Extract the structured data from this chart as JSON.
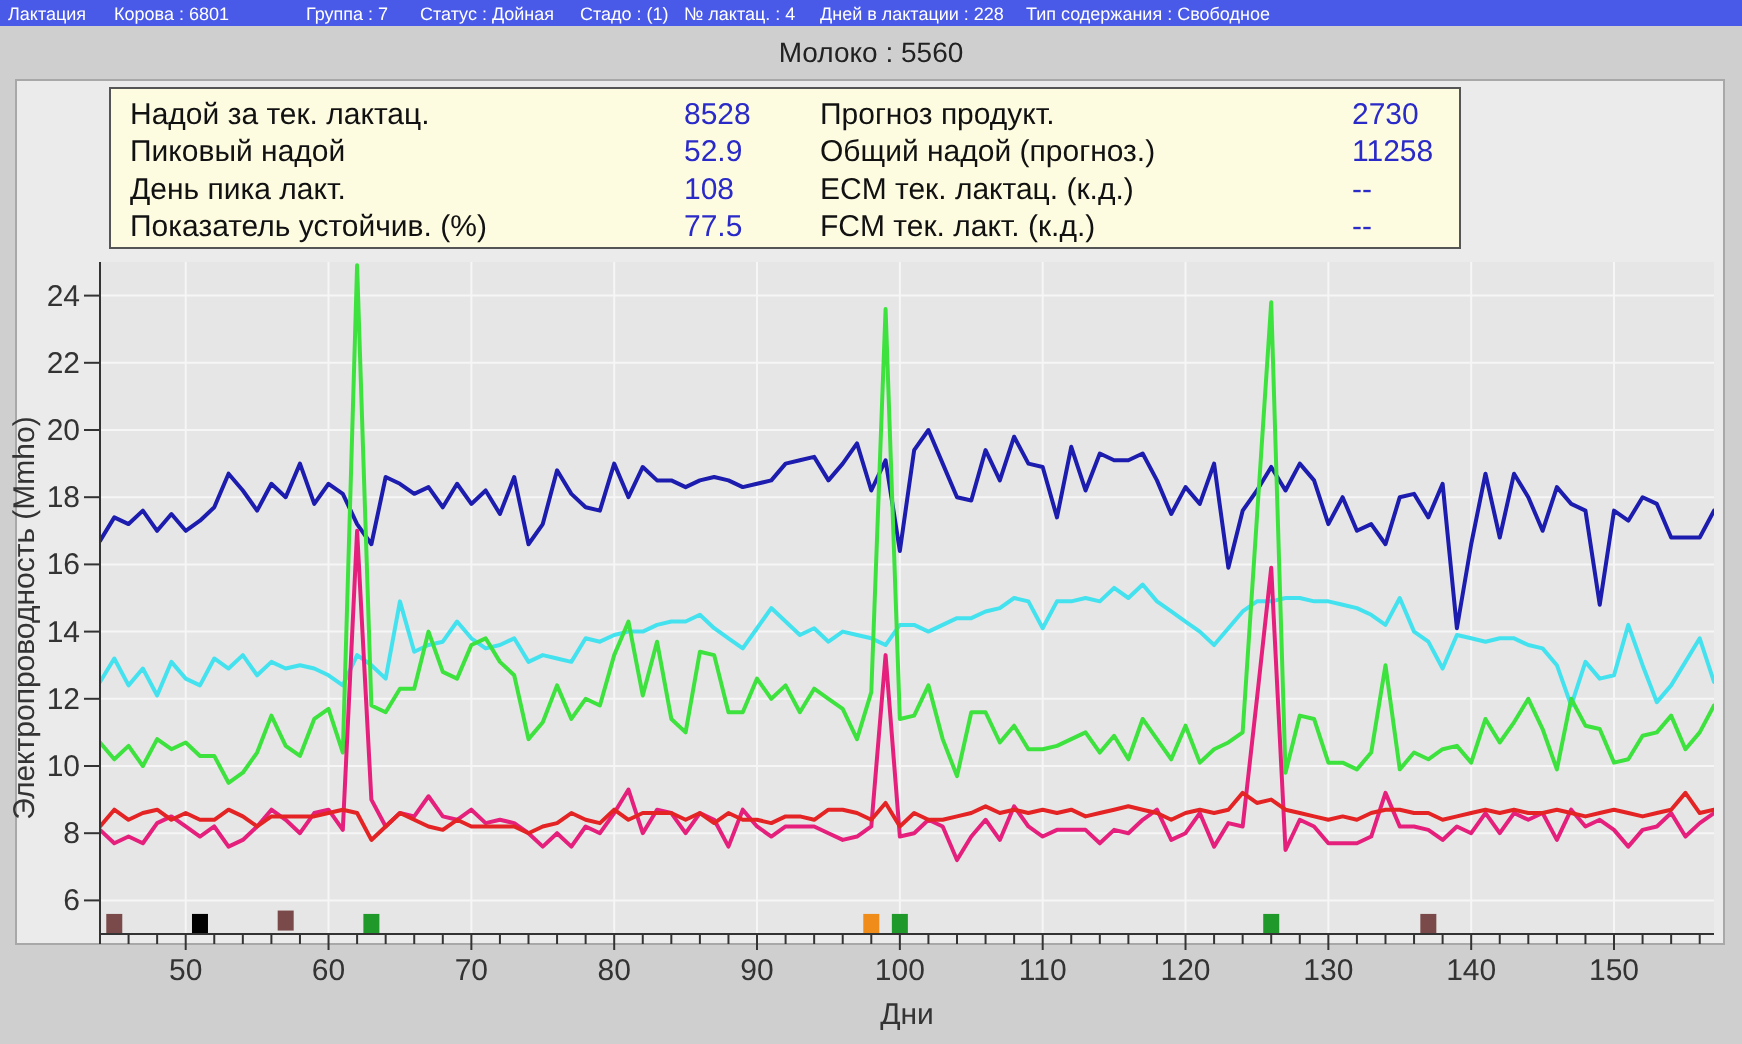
{
  "chart_data": {
    "type": "line",
    "title": "Молоко : 5560",
    "xlabel": "Дни",
    "ylabel": "Электропроводность  (Mmho)",
    "annotations": [
      "Лактация",
      "Корова : 6801",
      "Группа : 7",
      "Статус : Дойная",
      "Стадо : (1)",
      "№ лактац. : 4",
      "Дней в лактации : 228",
      "Тип содержания : Свободное",
      "Надой за тек. лактац.",
      "8528",
      "Прогноз продукт.",
      "2730",
      "Пиковый надой",
      "52.9",
      "Общий надой (прогноз.)",
      "11258",
      "День пика лакт.",
      "108",
      "ECM тек. лактац. (к.д.)",
      "--",
      "Показатель устойчив. (%)",
      "77.5",
      "FCM тек. лакт. (к.д.)",
      "--"
    ],
    "x": [
      44,
      45,
      46,
      47,
      48,
      49,
      50,
      51,
      52,
      53,
      54,
      55,
      56,
      57,
      58,
      59,
      60,
      61,
      62,
      63,
      64,
      65,
      66,
      67,
      68,
      69,
      70,
      71,
      72,
      73,
      74,
      75,
      76,
      77,
      78,
      79,
      80,
      81,
      82,
      83,
      84,
      85,
      86,
      87,
      88,
      89,
      90,
      91,
      92,
      93,
      94,
      95,
      96,
      97,
      98,
      99,
      100,
      101,
      102,
      103,
      104,
      105,
      106,
      107,
      108,
      109,
      110,
      111,
      112,
      113,
      114,
      115,
      116,
      117,
      118,
      119,
      120,
      121,
      122,
      123,
      124,
      125,
      126,
      127,
      128,
      129,
      130,
      131,
      132,
      133,
      134,
      135,
      136,
      137,
      138,
      139,
      140,
      141,
      142,
      143,
      144,
      145,
      146,
      147,
      148,
      149,
      150,
      151,
      152,
      153,
      154,
      155,
      156,
      157
    ],
    "xlim": [
      44,
      157
    ],
    "xticks": [
      {
        "value": 44,
        "label": null
      },
      {
        "value": 46,
        "label": null
      },
      {
        "value": 48,
        "label": null
      },
      50,
      {
        "value": 52,
        "label": null
      },
      {
        "value": 54,
        "label": null
      },
      {
        "value": 56,
        "label": null
      },
      {
        "value": 58,
        "label": null
      },
      60,
      {
        "value": 62,
        "label": null
      },
      {
        "value": 64,
        "label": null
      },
      {
        "value": 66,
        "label": null
      },
      {
        "value": 68,
        "label": null
      },
      70,
      {
        "value": 72,
        "label": null
      },
      {
        "value": 74,
        "label": null
      },
      {
        "value": 76,
        "label": null
      },
      {
        "value": 78,
        "label": null
      },
      80,
      {
        "value": 82,
        "label": null
      },
      {
        "value": 84,
        "label": null
      },
      {
        "value": 86,
        "label": null
      },
      {
        "value": 88,
        "label": null
      },
      90,
      {
        "value": 92,
        "label": null
      },
      {
        "value": 94,
        "label": null
      },
      {
        "value": 96,
        "label": null
      },
      {
        "value": 98,
        "label": null
      },
      100,
      {
        "value": 102,
        "label": null
      },
      {
        "value": 104,
        "label": null
      },
      {
        "value": 106,
        "label": null
      },
      {
        "value": 108,
        "label": null
      },
      110,
      {
        "value": 112,
        "label": null
      },
      {
        "value": 114,
        "label": null
      },
      {
        "value": 116,
        "label": null
      },
      {
        "value": 118,
        "label": null
      },
      120,
      {
        "value": 122,
        "label": null
      },
      {
        "value": 124,
        "label": null
      },
      {
        "value": 126,
        "label": null
      },
      {
        "value": 128,
        "label": null
      },
      130,
      {
        "value": 132,
        "label": null
      },
      {
        "value": 134,
        "label": null
      },
      {
        "value": 136,
        "label": null
      },
      {
        "value": 138,
        "label": null
      },
      140,
      {
        "value": 142,
        "label": null
      },
      {
        "value": 144,
        "label": null
      },
      {
        "value": 146,
        "label": null
      },
      {
        "value": 148,
        "label": null
      },
      150,
      {
        "value": 152,
        "label": null
      },
      {
        "value": 154,
        "label": null
      },
      {
        "value": 156,
        "label": null
      }
    ],
    "ylim": [
      5,
      25
    ],
    "yticks": [
      6,
      8,
      10,
      12,
      14,
      16,
      18,
      20,
      22,
      24
    ],
    "grid": true,
    "line_style": "solid",
    "series": [
      {
        "color": "#1c1cae",
        "values": [
          16.7,
          17.4,
          17.2,
          17.6,
          17.0,
          17.5,
          17.0,
          17.3,
          17.7,
          18.7,
          18.2,
          17.6,
          18.4,
          18.0,
          19.0,
          17.8,
          18.4,
          18.1,
          17.2,
          16.6,
          18.6,
          18.4,
          18.1,
          18.3,
          17.7,
          18.4,
          17.8,
          18.2,
          17.5,
          18.6,
          16.6,
          17.2,
          18.8,
          18.1,
          17.7,
          17.6,
          19.0,
          18.0,
          18.9,
          18.5,
          18.5,
          18.3,
          18.5,
          18.6,
          18.5,
          18.3,
          18.4,
          18.5,
          19.0,
          19.1,
          19.2,
          18.5,
          19.0,
          19.6,
          18.2,
          19.1,
          16.4,
          19.4,
          20.0,
          19.0,
          18.0,
          17.9,
          19.4,
          18.5,
          19.8,
          19.0,
          18.9,
          17.4,
          19.5,
          18.2,
          19.3,
          19.1,
          19.1,
          19.3,
          18.5,
          17.5,
          18.3,
          17.8,
          19.0,
          15.9,
          17.6,
          18.2,
          18.9,
          18.2,
          19.0,
          18.5,
          17.2,
          18.0,
          17.0,
          17.2,
          16.6,
          18.0,
          18.1,
          17.4,
          18.4,
          14.1,
          16.6,
          18.7,
          16.8,
          18.7,
          18.0,
          17.0,
          18.3,
          17.8,
          17.6,
          14.8,
          17.6,
          17.3,
          18.0,
          17.8,
          16.8,
          16.8,
          16.8,
          17.6
        ]
      },
      {
        "color": "#44e2ee",
        "values": [
          12.5,
          13.2,
          12.4,
          12.9,
          12.1,
          13.1,
          12.6,
          12.4,
          13.2,
          12.9,
          13.3,
          12.7,
          13.1,
          12.9,
          13.0,
          12.9,
          12.7,
          12.4,
          13.3,
          13.0,
          12.6,
          14.9,
          13.4,
          13.6,
          13.7,
          14.3,
          13.8,
          13.5,
          13.6,
          13.8,
          13.1,
          13.3,
          13.2,
          13.1,
          13.8,
          13.7,
          13.9,
          14.0,
          14.0,
          14.2,
          14.3,
          14.3,
          14.5,
          14.1,
          13.8,
          13.5,
          14.1,
          14.7,
          14.3,
          13.9,
          14.1,
          13.7,
          14.0,
          13.9,
          13.8,
          13.6,
          14.2,
          14.2,
          14.0,
          14.2,
          14.4,
          14.4,
          14.6,
          14.7,
          15.0,
          14.9,
          14.1,
          14.9,
          14.9,
          15.0,
          14.9,
          15.3,
          15.0,
          15.4,
          14.9,
          14.6,
          14.3,
          14.0,
          13.6,
          14.1,
          14.6,
          14.9,
          14.9,
          15.0,
          15.0,
          14.9,
          14.9,
          14.8,
          14.7,
          14.5,
          14.2,
          15.0,
          14.0,
          13.7,
          12.9,
          13.9,
          13.8,
          13.7,
          13.8,
          13.8,
          13.6,
          13.5,
          13.0,
          11.8,
          13.1,
          12.6,
          12.7,
          14.2,
          13.0,
          11.9,
          12.4,
          13.1,
          13.8,
          12.5
        ]
      },
      {
        "color": "#3ee23e",
        "values": [
          10.7,
          10.2,
          10.6,
          10.0,
          10.8,
          10.5,
          10.7,
          10.3,
          10.3,
          9.5,
          9.8,
          10.4,
          11.5,
          10.6,
          10.3,
          11.4,
          11.7,
          10.4,
          24.9,
          11.8,
          11.6,
          12.3,
          12.3,
          14.0,
          12.8,
          12.6,
          13.6,
          13.8,
          13.1,
          12.7,
          10.8,
          11.3,
          12.4,
          11.4,
          12.0,
          11.8,
          13.3,
          14.3,
          12.1,
          13.7,
          11.4,
          11.0,
          13.4,
          13.3,
          11.6,
          11.6,
          12.6,
          12.0,
          12.4,
          11.6,
          12.3,
          12.0,
          11.7,
          10.8,
          12.2,
          23.6,
          11.4,
          11.5,
          12.4,
          10.8,
          9.7,
          11.6,
          11.6,
          10.7,
          11.2,
          10.5,
          10.5,
          10.6,
          10.8,
          11.0,
          10.4,
          10.9,
          10.2,
          11.4,
          10.8,
          10.2,
          11.2,
          10.1,
          10.5,
          10.7,
          11.0,
          17.4,
          23.8,
          9.8,
          11.5,
          11.4,
          10.1,
          10.1,
          9.9,
          10.4,
          13.0,
          9.9,
          10.4,
          10.2,
          10.5,
          10.6,
          10.1,
          11.4,
          10.7,
          11.3,
          12.0,
          11.1,
          9.9,
          12.0,
          11.2,
          11.1,
          10.1,
          10.2,
          10.9,
          11.0,
          11.5,
          10.5,
          11.0,
          11.8
        ]
      },
      {
        "color": "#e4207c",
        "values": [
          8.1,
          7.7,
          7.9,
          7.7,
          8.3,
          8.5,
          8.2,
          7.9,
          8.2,
          7.6,
          7.8,
          8.2,
          8.7,
          8.4,
          8.0,
          8.6,
          8.7,
          8.1,
          17.0,
          9.0,
          8.2,
          8.6,
          8.5,
          9.1,
          8.5,
          8.4,
          8.7,
          8.3,
          8.4,
          8.3,
          8.0,
          7.6,
          8.0,
          7.6,
          8.2,
          8.0,
          8.6,
          9.3,
          8.0,
          8.7,
          8.6,
          8.0,
          8.6,
          8.4,
          7.6,
          8.7,
          8.2,
          7.9,
          8.2,
          8.2,
          8.2,
          8.0,
          7.8,
          7.9,
          8.2,
          13.3,
          7.9,
          8.0,
          8.4,
          8.2,
          7.2,
          7.9,
          8.4,
          7.8,
          8.8,
          8.2,
          7.9,
          8.1,
          8.1,
          8.1,
          7.7,
          8.1,
          8.0,
          8.4,
          8.7,
          7.8,
          8.0,
          8.6,
          7.6,
          8.3,
          8.2,
          12.0,
          15.9,
          7.5,
          8.4,
          8.2,
          7.7,
          7.7,
          7.7,
          7.9,
          9.2,
          8.2,
          8.2,
          8.1,
          7.8,
          8.2,
          8.0,
          8.6,
          8.0,
          8.6,
          8.4,
          8.6,
          7.8,
          8.7,
          8.2,
          8.4,
          8.1,
          7.6,
          8.1,
          8.2,
          8.6,
          7.9,
          8.3,
          8.6
        ]
      },
      {
        "color": "#e42424",
        "values": [
          8.2,
          8.7,
          8.4,
          8.6,
          8.7,
          8.4,
          8.6,
          8.4,
          8.4,
          8.7,
          8.5,
          8.2,
          8.5,
          8.5,
          8.5,
          8.5,
          8.6,
          8.7,
          8.6,
          7.8,
          8.2,
          8.6,
          8.4,
          8.2,
          8.1,
          8.4,
          8.2,
          8.2,
          8.2,
          8.2,
          8.0,
          8.2,
          8.3,
          8.6,
          8.4,
          8.3,
          8.7,
          8.4,
          8.6,
          8.6,
          8.6,
          8.4,
          8.6,
          8.3,
          8.6,
          8.4,
          8.4,
          8.3,
          8.5,
          8.5,
          8.4,
          8.7,
          8.7,
          8.6,
          8.4,
          8.9,
          8.2,
          8.6,
          8.4,
          8.4,
          8.5,
          8.6,
          8.8,
          8.6,
          8.7,
          8.6,
          8.7,
          8.6,
          8.7,
          8.5,
          8.6,
          8.7,
          8.8,
          8.7,
          8.6,
          8.4,
          8.6,
          8.7,
          8.6,
          8.7,
          9.2,
          8.9,
          9.0,
          8.7,
          8.6,
          8.5,
          8.4,
          8.5,
          8.4,
          8.6,
          8.7,
          8.7,
          8.6,
          8.6,
          8.4,
          8.5,
          8.6,
          8.7,
          8.6,
          8.7,
          8.6,
          8.6,
          8.7,
          8.6,
          8.5,
          8.6,
          8.7,
          8.6,
          8.5,
          8.6,
          8.7,
          9.2,
          8.6,
          8.7
        ]
      },
      {
        "type": "scatter",
        "marker": "square",
        "x": [
          45,
          51,
          57,
          63,
          98,
          100,
          126,
          137
        ],
        "values": [
          5.3,
          5.3,
          5.4,
          5.3,
          5.3,
          5.3,
          5.3,
          5.3
        ],
        "colors": [
          "#7a4a4a",
          "#000000",
          "#7a4a4a",
          "#1f9a2a",
          "#f08c1a",
          "#1f9a2a",
          "#1f9a2a",
          "#7a4a4a"
        ]
      }
    ]
  }
}
